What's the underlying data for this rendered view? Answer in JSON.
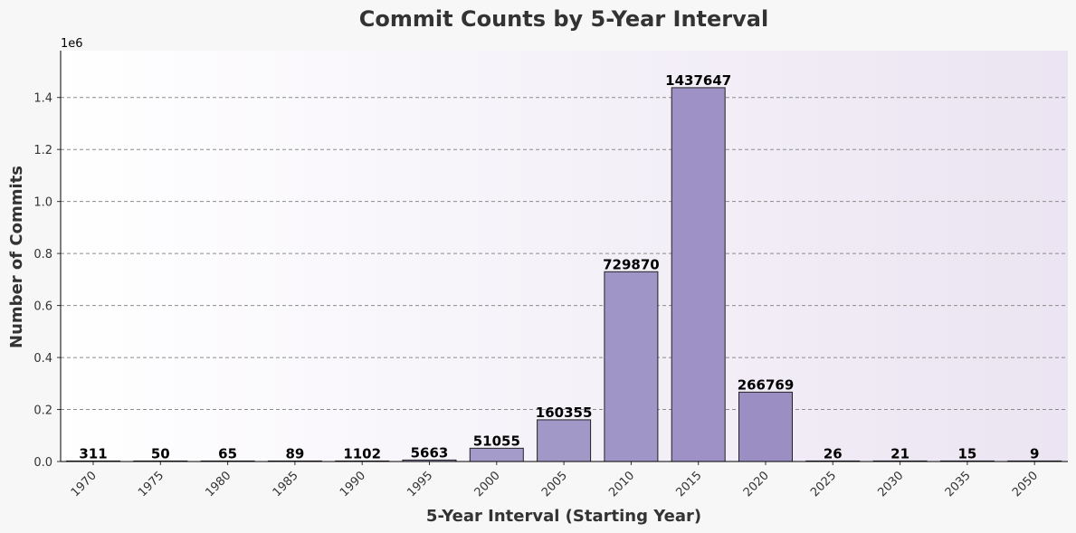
{
  "chart_data": {
    "type": "bar",
    "title": "Commit Counts by 5-Year Interval",
    "xlabel": "5-Year Interval (Starting Year)",
    "ylabel": "Number of Commits",
    "y_scale_label": "1e6",
    "categories": [
      "1970",
      "1975",
      "1980",
      "1985",
      "1990",
      "1995",
      "2000",
      "2005",
      "2010",
      "2015",
      "2020",
      "2025",
      "2030",
      "2035",
      "2050"
    ],
    "values": [
      311,
      50,
      65,
      89,
      1102,
      5663,
      51055,
      160355,
      729870,
      1437647,
      266769,
      26,
      21,
      15,
      9
    ],
    "yticks": [
      "0.0",
      "0.2",
      "0.4",
      "0.6",
      "0.8",
      "1.0",
      "1.2",
      "1.4"
    ],
    "ylim": [
      0,
      1580000
    ],
    "grid": true,
    "colors": {
      "bar_light": "#b4b0d4",
      "bar_dark": "#9080bc",
      "bar_edge": "#222222",
      "bg_left": "#ffffff",
      "bg_right": "#ebe4f2",
      "grid": "#8c8c8c"
    }
  }
}
